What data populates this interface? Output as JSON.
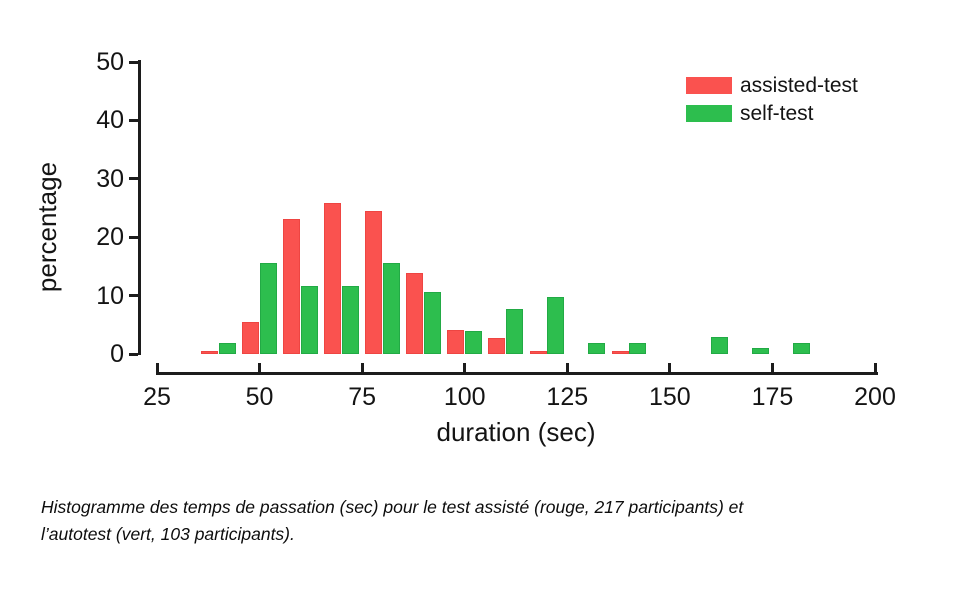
{
  "figure": {
    "caption_line1": "Histogramme des temps de passation (sec) pour le test assisté (rouge, 217 participants) et",
    "caption_line2": "l’autotest (vert, 103 participants)."
  },
  "chart_data": {
    "type": "bar",
    "subtype": "grouped-histogram",
    "title": "",
    "xlabel": "duration (sec)",
    "ylabel": "percentage",
    "xlim": [
      25,
      200
    ],
    "ylim": [
      0,
      50
    ],
    "x_ticks": [
      25,
      50,
      75,
      100,
      125,
      150,
      175,
      200
    ],
    "y_ticks": [
      0,
      10,
      20,
      30,
      40,
      50
    ],
    "grid": false,
    "axis_color": "#1c1c1c",
    "legend": {
      "position": "top-right",
      "entries": [
        {
          "label": "assisted-test",
          "color": "#fa524f"
        },
        {
          "label": "self-test",
          "color": "#2dbe4e"
        }
      ]
    },
    "series": [
      {
        "name": "assisted-test",
        "color": "#fa524f",
        "participants": 217,
        "points": [
          {
            "x": 37.5,
            "y": 0.46
          },
          {
            "x": 47.5,
            "y": 5.53
          },
          {
            "x": 57.5,
            "y": 23.04
          },
          {
            "x": 67.5,
            "y": 25.81
          },
          {
            "x": 77.5,
            "y": 24.42
          },
          {
            "x": 87.5,
            "y": 13.82
          },
          {
            "x": 97.5,
            "y": 4.15
          },
          {
            "x": 107.5,
            "y": 2.76
          },
          {
            "x": 117.5,
            "y": 0.46
          },
          {
            "x": 137.5,
            "y": 0.46
          }
        ]
      },
      {
        "name": "self-test",
        "color": "#2dbe4e",
        "participants": 103,
        "points": [
          {
            "x": 42.5,
            "y": 1.94
          },
          {
            "x": 52.5,
            "y": 15.53
          },
          {
            "x": 62.5,
            "y": 11.65
          },
          {
            "x": 72.5,
            "y": 11.65
          },
          {
            "x": 82.5,
            "y": 15.53
          },
          {
            "x": 92.5,
            "y": 10.68
          },
          {
            "x": 102.5,
            "y": 3.88
          },
          {
            "x": 112.5,
            "y": 7.77
          },
          {
            "x": 122.5,
            "y": 9.71
          },
          {
            "x": 132.5,
            "y": 1.94
          },
          {
            "x": 142.5,
            "y": 1.94
          },
          {
            "x": 162.5,
            "y": 2.91
          },
          {
            "x": 172.5,
            "y": 0.97
          },
          {
            "x": 182.5,
            "y": 1.94
          }
        ]
      }
    ]
  }
}
